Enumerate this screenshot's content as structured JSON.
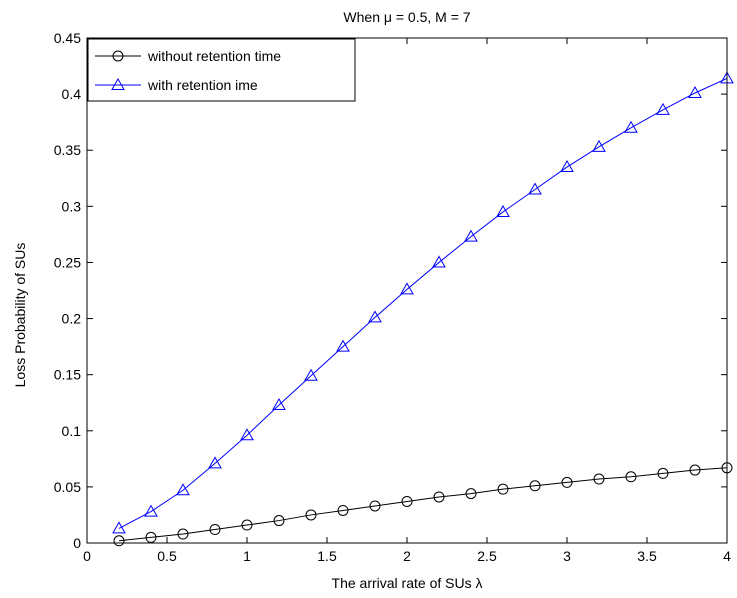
{
  "chart_data": {
    "type": "line",
    "title": "When μ = 0.5,  M = 7",
    "xlabel": "The arrival rate of SUs λ",
    "ylabel": "Loss Probability of SUs",
    "xlim": [
      0,
      4
    ],
    "ylim": [
      0,
      0.45
    ],
    "x_ticks": [
      "0",
      "0.5",
      "1",
      "1.5",
      "2",
      "2.5",
      "3",
      "3.5",
      "4"
    ],
    "y_ticks": [
      "0",
      "0.05",
      "0.1",
      "0.15",
      "0.2",
      "0.25",
      "0.3",
      "0.35",
      "0.4",
      "0.45"
    ],
    "grid": false,
    "legend_position": "top-left",
    "x": [
      0.2,
      0.4,
      0.6,
      0.8,
      1.0,
      1.2,
      1.4,
      1.6,
      1.8,
      2.0,
      2.2,
      2.4,
      2.6,
      2.8,
      3.0,
      3.2,
      3.4,
      3.6,
      3.8,
      4.0
    ],
    "series": [
      {
        "name": "without retention time",
        "color": "#000000",
        "marker": "circle",
        "values": [
          0.002,
          0.005,
          0.008,
          0.012,
          0.016,
          0.02,
          0.025,
          0.029,
          0.033,
          0.037,
          0.041,
          0.044,
          0.048,
          0.051,
          0.054,
          0.057,
          0.059,
          0.062,
          0.065,
          0.067
        ]
      },
      {
        "name": "with retention ime",
        "color": "#0000ff",
        "marker": "triangle",
        "values": [
          0.013,
          0.028,
          0.047,
          0.071,
          0.096,
          0.123,
          0.149,
          0.175,
          0.201,
          0.226,
          0.25,
          0.273,
          0.295,
          0.315,
          0.335,
          0.353,
          0.37,
          0.386,
          0.401,
          0.414
        ]
      }
    ]
  }
}
